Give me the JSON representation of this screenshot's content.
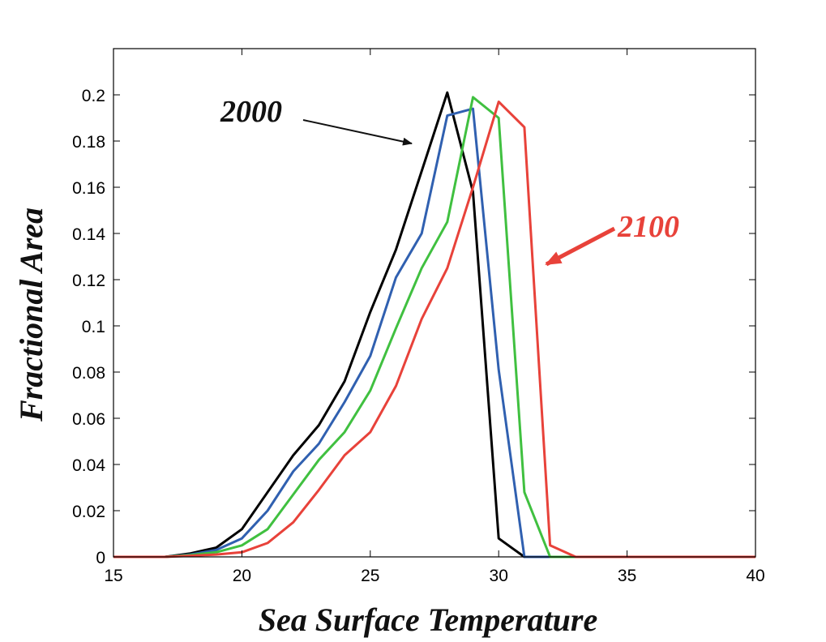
{
  "chart_data": {
    "type": "line",
    "xlabel": "Sea Surface Temperature",
    "ylabel": "Fractional Area",
    "xlim": [
      15,
      40
    ],
    "ylim": [
      0,
      0.22
    ],
    "x_ticks": [
      15,
      20,
      25,
      30,
      35,
      40
    ],
    "x_tick_labels": [
      "15",
      "20",
      "25",
      "30",
      "35",
      "40"
    ],
    "y_ticks": [
      0,
      0.02,
      0.04,
      0.06,
      0.08,
      0.1,
      0.12,
      0.14,
      0.16,
      0.18,
      0.2
    ],
    "y_tick_labels": [
      "0",
      "0.02",
      "0.04",
      "0.06",
      "0.08",
      "0.1",
      "0.12",
      "0.14",
      "0.16",
      "0.18",
      "0.2"
    ],
    "grid": false,
    "x": [
      15,
      16,
      17,
      18,
      19,
      20,
      21,
      22,
      23,
      24,
      25,
      26,
      27,
      28,
      29,
      30,
      31,
      32,
      33,
      34,
      35,
      36,
      37,
      38,
      39,
      40
    ],
    "series": [
      {
        "color": "#000000",
        "values": [
          0,
          0,
          0,
          0.0015,
          0.004,
          0.012,
          0.028,
          0.044,
          0.057,
          0.076,
          0.106,
          0.133,
          0.167,
          0.201,
          0.158,
          0.008,
          0,
          0,
          0,
          0,
          0,
          0,
          0,
          0,
          0,
          0
        ]
      },
      {
        "color": "#3060b0",
        "values": [
          0,
          0,
          0,
          0.001,
          0.003,
          0.008,
          0.02,
          0.037,
          0.049,
          0.067,
          0.087,
          0.121,
          0.14,
          0.191,
          0.194,
          0.081,
          0,
          0,
          0,
          0,
          0,
          0,
          0,
          0,
          0,
          0
        ]
      },
      {
        "color": "#40c040",
        "values": [
          0,
          0,
          0,
          0.0008,
          0.002,
          0.005,
          0.012,
          0.027,
          0.042,
          0.054,
          0.072,
          0.099,
          0.125,
          0.145,
          0.199,
          0.19,
          0.028,
          0,
          0,
          0,
          0,
          0,
          0,
          0,
          0,
          0
        ]
      },
      {
        "color": "#e8423a",
        "values": [
          0,
          0,
          0,
          0.0005,
          0.001,
          0.002,
          0.006,
          0.015,
          0.029,
          0.044,
          0.054,
          0.074,
          0.103,
          0.125,
          0.16,
          0.197,
          0.186,
          0.005,
          0,
          0,
          0,
          0,
          0,
          0,
          0,
          0
        ]
      }
    ],
    "annotations": [
      {
        "text": "2000",
        "color": "#111111",
        "points_to": [
          27.2,
          0.179
        ]
      },
      {
        "text": "2100",
        "color": "#e8423a",
        "points_to": [
          31.8,
          0.125
        ]
      }
    ]
  }
}
